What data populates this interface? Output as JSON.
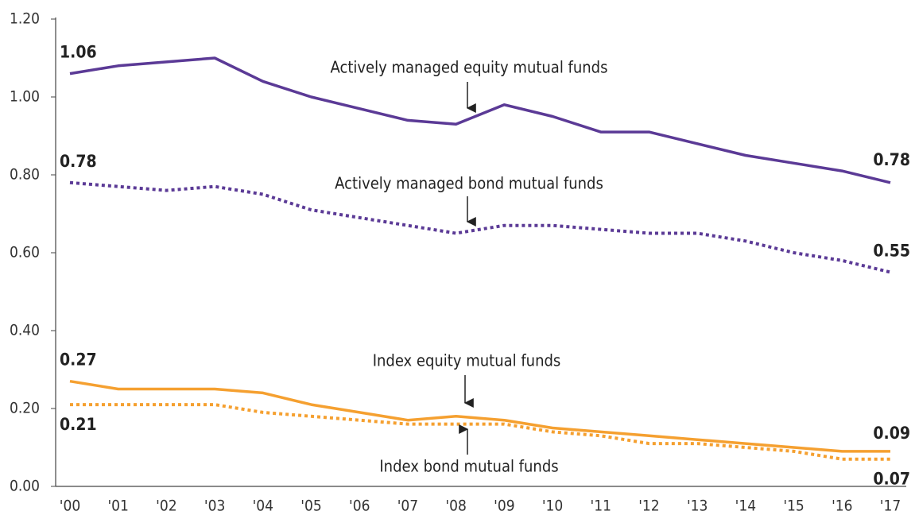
{
  "chart_data": {
    "type": "line",
    "categories": [
      "'00",
      "'01",
      "'02",
      "'03",
      "'04",
      "'05",
      "'06",
      "'07",
      "'08",
      "'09",
      "'10",
      "'11",
      "'12",
      "'13",
      "'14",
      "'15",
      "'16",
      "'17"
    ],
    "ylim": [
      0,
      1.2
    ],
    "yticks": [
      {
        "value": 0,
        "label": "0.00"
      },
      {
        "value": 0.2,
        "label": "0.20"
      },
      {
        "value": 0.4,
        "label": "0.40"
      },
      {
        "value": 0.6,
        "label": "0.60"
      },
      {
        "value": 0.8,
        "label": "0.80"
      },
      {
        "value": 1.0,
        "label": "1.00"
      },
      {
        "value": 1.2,
        "label": "1.20"
      }
    ],
    "grid": false,
    "series": [
      {
        "name": "Actively managed equity mutual funds",
        "color": "#5b3a96",
        "style": "solid",
        "values": [
          1.06,
          1.08,
          1.09,
          1.1,
          1.04,
          1.0,
          0.97,
          0.94,
          0.93,
          0.98,
          0.95,
          0.91,
          0.91,
          0.88,
          0.85,
          0.83,
          0.81,
          0.78
        ]
      },
      {
        "name": "Actively managed bond mutual funds",
        "color": "#5b3a96",
        "style": "dotted",
        "values": [
          0.78,
          0.77,
          0.76,
          0.77,
          0.75,
          0.71,
          0.69,
          0.67,
          0.65,
          0.67,
          0.67,
          0.66,
          0.65,
          0.65,
          0.63,
          0.6,
          0.58,
          0.55
        ]
      },
      {
        "name": "Index equity mutual funds",
        "color": "#f5a030",
        "style": "solid",
        "values": [
          0.27,
          0.25,
          0.25,
          0.25,
          0.24,
          0.21,
          0.19,
          0.17,
          0.18,
          0.17,
          0.15,
          0.14,
          0.13,
          0.12,
          0.11,
          0.1,
          0.09,
          0.09
        ]
      },
      {
        "name": "Index bond mutual funds",
        "color": "#f5a030",
        "style": "dotted",
        "values": [
          0.21,
          0.21,
          0.21,
          0.21,
          0.19,
          0.18,
          0.17,
          0.16,
          0.16,
          0.16,
          0.14,
          0.13,
          0.11,
          0.11,
          0.1,
          0.09,
          0.07,
          0.07
        ]
      }
    ]
  }
}
